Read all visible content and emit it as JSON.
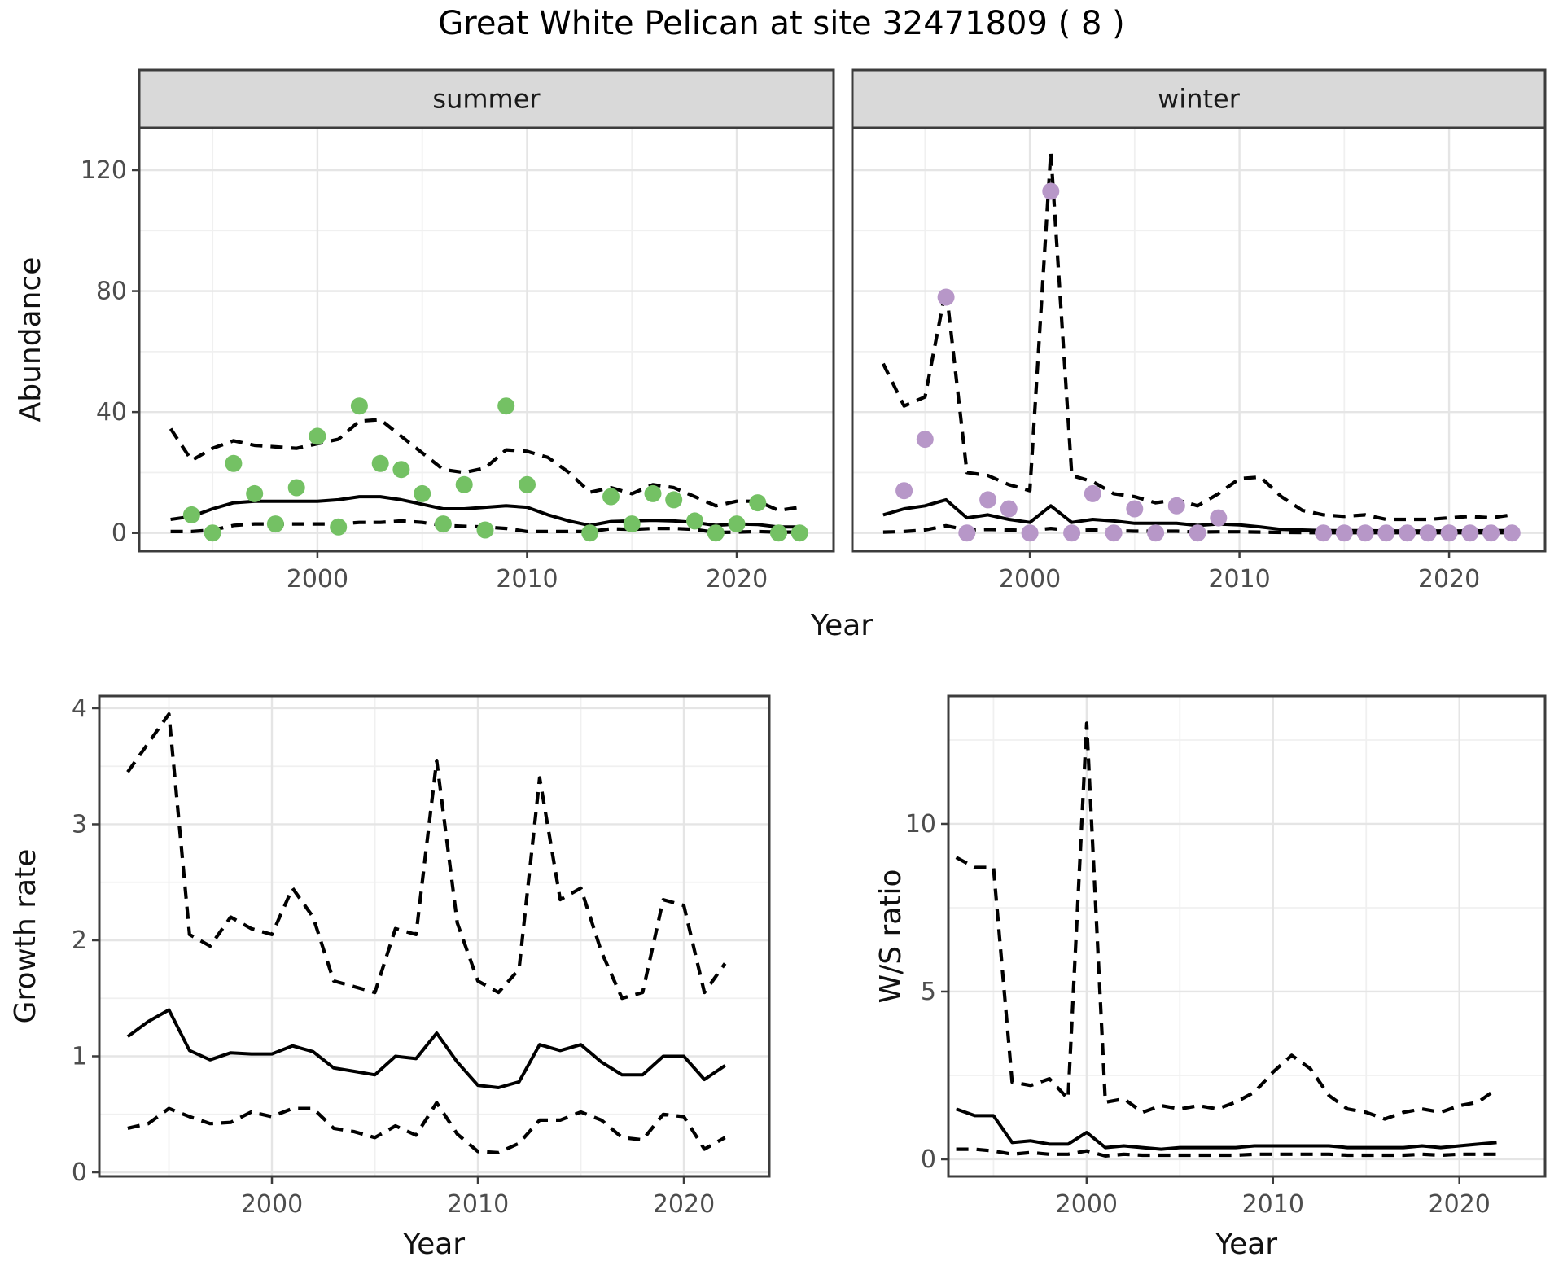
{
  "title": "Great White Pelican at site 32471809 ( 8 )",
  "axis_labels": {
    "abundance": "Abundance",
    "year_top": "Year",
    "growth": "Growth rate",
    "ws": "W/S ratio",
    "year_growth": "Year",
    "year_ws": "Year"
  },
  "colors": {
    "summer_point": "#74c164",
    "winter_point": "#b797c8",
    "line": "#000000",
    "grid_major": "#e5e5e5",
    "grid_minor": "#f0f0f0",
    "panel_border": "#3c3c3c",
    "strip_bg": "#d9d9d9",
    "tick_text": "#4d4d4d",
    "strip_text": "#1a1a1a"
  },
  "chart_data": [
    {
      "panel": "abundance-summer",
      "type": "scatter",
      "facet": "summer",
      "show_y_labels": true,
      "xlim": [
        1991.5,
        2024.62
      ],
      "ylim": [
        -6,
        134
      ],
      "x_major": [
        2000,
        2010,
        2020
      ],
      "x_minor": [
        1995,
        2005,
        2015
      ],
      "y_major": [
        0,
        40,
        80,
        120
      ],
      "y_minor": [
        20,
        60,
        100
      ],
      "points": {
        "x": [
          1994,
          1995,
          1996,
          1997,
          1998,
          1999,
          2000,
          2001,
          2002,
          2003,
          2004,
          2005,
          2006,
          2007,
          2008,
          2009,
          2010,
          2013,
          2014,
          2015,
          2016,
          2017,
          2018,
          2019,
          2020,
          2021,
          2022,
          2023
        ],
        "y": [
          6,
          0,
          23,
          13,
          3,
          15,
          32,
          2,
          42,
          23,
          21,
          13,
          3,
          16,
          1,
          42,
          16,
          0,
          12,
          3,
          13,
          11,
          4,
          0,
          3,
          10,
          0,
          0
        ]
      },
      "line_x": [
        1993,
        1994,
        1995,
        1996,
        1997,
        1998,
        1999,
        2000,
        2001,
        2002,
        2003,
        2004,
        2005,
        2006,
        2007,
        2008,
        2009,
        2010,
        2011,
        2012,
        2013,
        2014,
        2015,
        2016,
        2017,
        2018,
        2019,
        2020,
        2021,
        2022,
        2023
      ],
      "median": [
        4.5,
        5.5,
        8,
        10,
        10.5,
        10.5,
        10.5,
        10.5,
        11,
        12,
        12,
        11,
        9.5,
        8,
        8,
        8.5,
        9,
        8.5,
        6,
        4,
        2.5,
        3.8,
        4,
        4.2,
        4,
        3.5,
        2.5,
        3,
        2.8,
        2,
        2
      ],
      "upper": [
        34.5,
        24,
        28,
        30.5,
        29,
        28.5,
        28,
        29.5,
        31,
        37,
        37.5,
        32,
        26.5,
        21,
        20,
        21.5,
        27.5,
        27,
        25,
        20,
        13.5,
        15,
        13,
        16,
        15,
        12,
        9,
        10.5,
        10.5,
        7.5,
        8.5
      ],
      "lower": [
        0.5,
        0.5,
        1,
        2.5,
        3,
        3,
        3,
        3,
        3,
        3.5,
        3.5,
        4,
        3.5,
        2.5,
        2.2,
        2,
        1.5,
        0.5,
        0.5,
        0.5,
        0.5,
        1.4,
        1.2,
        1.5,
        1.5,
        1.2,
        0.2,
        0.3,
        0.5,
        0.3,
        0.3
      ]
    },
    {
      "panel": "abundance-winter",
      "type": "scatter",
      "facet": "winter",
      "show_y_labels": false,
      "xlim": [
        1991.53,
        2024.58
      ],
      "ylim": [
        -6,
        134
      ],
      "x_major": [
        2000,
        2010,
        2020
      ],
      "x_minor": [
        1995,
        2005,
        2015
      ],
      "y_major": [
        0,
        40,
        80,
        120
      ],
      "y_minor": [
        20,
        60,
        100
      ],
      "points": {
        "x": [
          1994,
          1995,
          1996,
          1997,
          1998,
          1999,
          2000,
          2001,
          2002,
          2003,
          2004,
          2005,
          2006,
          2007,
          2008,
          2009,
          2014,
          2015,
          2016,
          2017,
          2018,
          2019,
          2020,
          2021,
          2022,
          2023
        ],
        "y": [
          14,
          31,
          78,
          0,
          11,
          8,
          0,
          113,
          0,
          13,
          0,
          8,
          0,
          9,
          0,
          5,
          0,
          0,
          0,
          0,
          0,
          0,
          0,
          0,
          0,
          0
        ]
      },
      "line_x": [
        1993,
        1994,
        1995,
        1996,
        1997,
        1998,
        1999,
        2000,
        2001,
        2002,
        2003,
        2004,
        2005,
        2006,
        2007,
        2008,
        2009,
        2010,
        2011,
        2012,
        2013,
        2014,
        2015,
        2016,
        2017,
        2018,
        2019,
        2020,
        2021,
        2022,
        2023
      ],
      "median": [
        6,
        8,
        9,
        11,
        5,
        6,
        4.5,
        3.5,
        9,
        3.5,
        4.5,
        4,
        3.2,
        3.2,
        3.2,
        2.5,
        3,
        2.7,
        2,
        1.2,
        1,
        0.8,
        0.8,
        0.8,
        0.7,
        0.7,
        0.7,
        0.7,
        0.7,
        0.8,
        0.8
      ],
      "upper": [
        56,
        42,
        45,
        81,
        20,
        19,
        16,
        14,
        126,
        19,
        17,
        13,
        12,
        10,
        11,
        9,
        13,
        18,
        18.5,
        12,
        7.5,
        6,
        5.5,
        6,
        4.5,
        4.5,
        4.5,
        5,
        5.5,
        5,
        6
      ],
      "lower": [
        0.3,
        0.5,
        1,
        2.4,
        1,
        1.2,
        1,
        0.8,
        1.5,
        0.8,
        1,
        0.8,
        0.6,
        0.6,
        0.6,
        0.3,
        0.4,
        0.4,
        0.3,
        0.2,
        0.15,
        0.1,
        0.1,
        0.1,
        0.1,
        0.1,
        0.1,
        0.1,
        0.1,
        0.1,
        0.15
      ]
    },
    {
      "panel": "growth-rate",
      "type": "line",
      "facet": null,
      "show_y_labels": true,
      "xlim": [
        1991.62,
        2024.15
      ],
      "ylim": [
        -0.035,
        4.105
      ],
      "x_major": [
        2000,
        2010,
        2020
      ],
      "x_minor": [
        1995,
        2005,
        2015
      ],
      "y_major": [
        0,
        1,
        2,
        3,
        4
      ],
      "y_minor": [
        0.5,
        1.5,
        2.5,
        3.5
      ],
      "points": {
        "x": [],
        "y": []
      },
      "line_x": [
        1993,
        1994,
        1995,
        1996,
        1997,
        1998,
        1999,
        2000,
        2001,
        2002,
        2003,
        2004,
        2005,
        2006,
        2007,
        2008,
        2009,
        2010,
        2011,
        2012,
        2013,
        2014,
        2015,
        2016,
        2017,
        2018,
        2019,
        2020,
        2021,
        2022
      ],
      "median": [
        1.17,
        1.3,
        1.4,
        1.05,
        0.97,
        1.03,
        1.02,
        1.02,
        1.09,
        1.04,
        0.9,
        0.87,
        0.84,
        1.0,
        0.98,
        1.2,
        0.95,
        0.75,
        0.73,
        0.78,
        1.1,
        1.05,
        1.1,
        0.95,
        0.84,
        0.84,
        1.0,
        1.0,
        0.8,
        0.92
      ],
      "upper": [
        3.45,
        3.7,
        3.95,
        2.05,
        1.95,
        2.2,
        2.1,
        2.05,
        2.45,
        2.2,
        1.65,
        1.6,
        1.55,
        2.1,
        2.05,
        3.55,
        2.15,
        1.65,
        1.55,
        1.75,
        3.4,
        2.35,
        2.45,
        1.9,
        1.5,
        1.55,
        2.35,
        2.3,
        1.55,
        1.8
      ],
      "lower": [
        0.38,
        0.42,
        0.55,
        0.48,
        0.42,
        0.43,
        0.52,
        0.48,
        0.55,
        0.55,
        0.38,
        0.35,
        0.3,
        0.4,
        0.32,
        0.6,
        0.33,
        0.18,
        0.17,
        0.25,
        0.45,
        0.45,
        0.52,
        0.45,
        0.3,
        0.28,
        0.5,
        0.48,
        0.2,
        0.3
      ]
    },
    {
      "panel": "ws-ratio",
      "type": "line",
      "facet": null,
      "show_y_labels": true,
      "xlim": [
        1992.58,
        2024.6
      ],
      "ylim": [
        -0.51,
        13.81
      ],
      "x_major": [
        2000,
        2010,
        2020
      ],
      "x_minor": [
        1995,
        2005,
        2015
      ],
      "y_major": [
        0,
        5,
        10
      ],
      "y_minor": [
        2.5,
        7.5,
        12.5
      ],
      "points": {
        "x": [],
        "y": []
      },
      "line_x": [
        1993,
        1994,
        1995,
        1996,
        1997,
        1998,
        1999,
        2000,
        2001,
        2002,
        2003,
        2004,
        2005,
        2006,
        2007,
        2008,
        2009,
        2010,
        2011,
        2012,
        2013,
        2014,
        2015,
        2016,
        2017,
        2018,
        2019,
        2020,
        2021,
        2022
      ],
      "median": [
        1.5,
        1.3,
        1.3,
        0.5,
        0.55,
        0.45,
        0.45,
        0.8,
        0.35,
        0.4,
        0.35,
        0.3,
        0.35,
        0.35,
        0.35,
        0.35,
        0.4,
        0.4,
        0.4,
        0.4,
        0.4,
        0.35,
        0.35,
        0.35,
        0.35,
        0.4,
        0.35,
        0.4,
        0.45,
        0.5
      ],
      "upper": [
        9.0,
        8.7,
        8.7,
        2.3,
        2.2,
        2.4,
        1.8,
        13,
        1.7,
        1.8,
        1.4,
        1.6,
        1.5,
        1.6,
        1.5,
        1.7,
        2.0,
        2.6,
        3.1,
        2.7,
        1.9,
        1.5,
        1.4,
        1.2,
        1.4,
        1.5,
        1.4,
        1.6,
        1.7,
        2.1
      ],
      "lower": [
        0.3,
        0.3,
        0.25,
        0.15,
        0.2,
        0.15,
        0.15,
        0.25,
        0.1,
        0.15,
        0.12,
        0.12,
        0.12,
        0.12,
        0.12,
        0.12,
        0.15,
        0.15,
        0.15,
        0.15,
        0.15,
        0.12,
        0.12,
        0.12,
        0.12,
        0.15,
        0.12,
        0.15,
        0.15,
        0.15
      ]
    }
  ]
}
